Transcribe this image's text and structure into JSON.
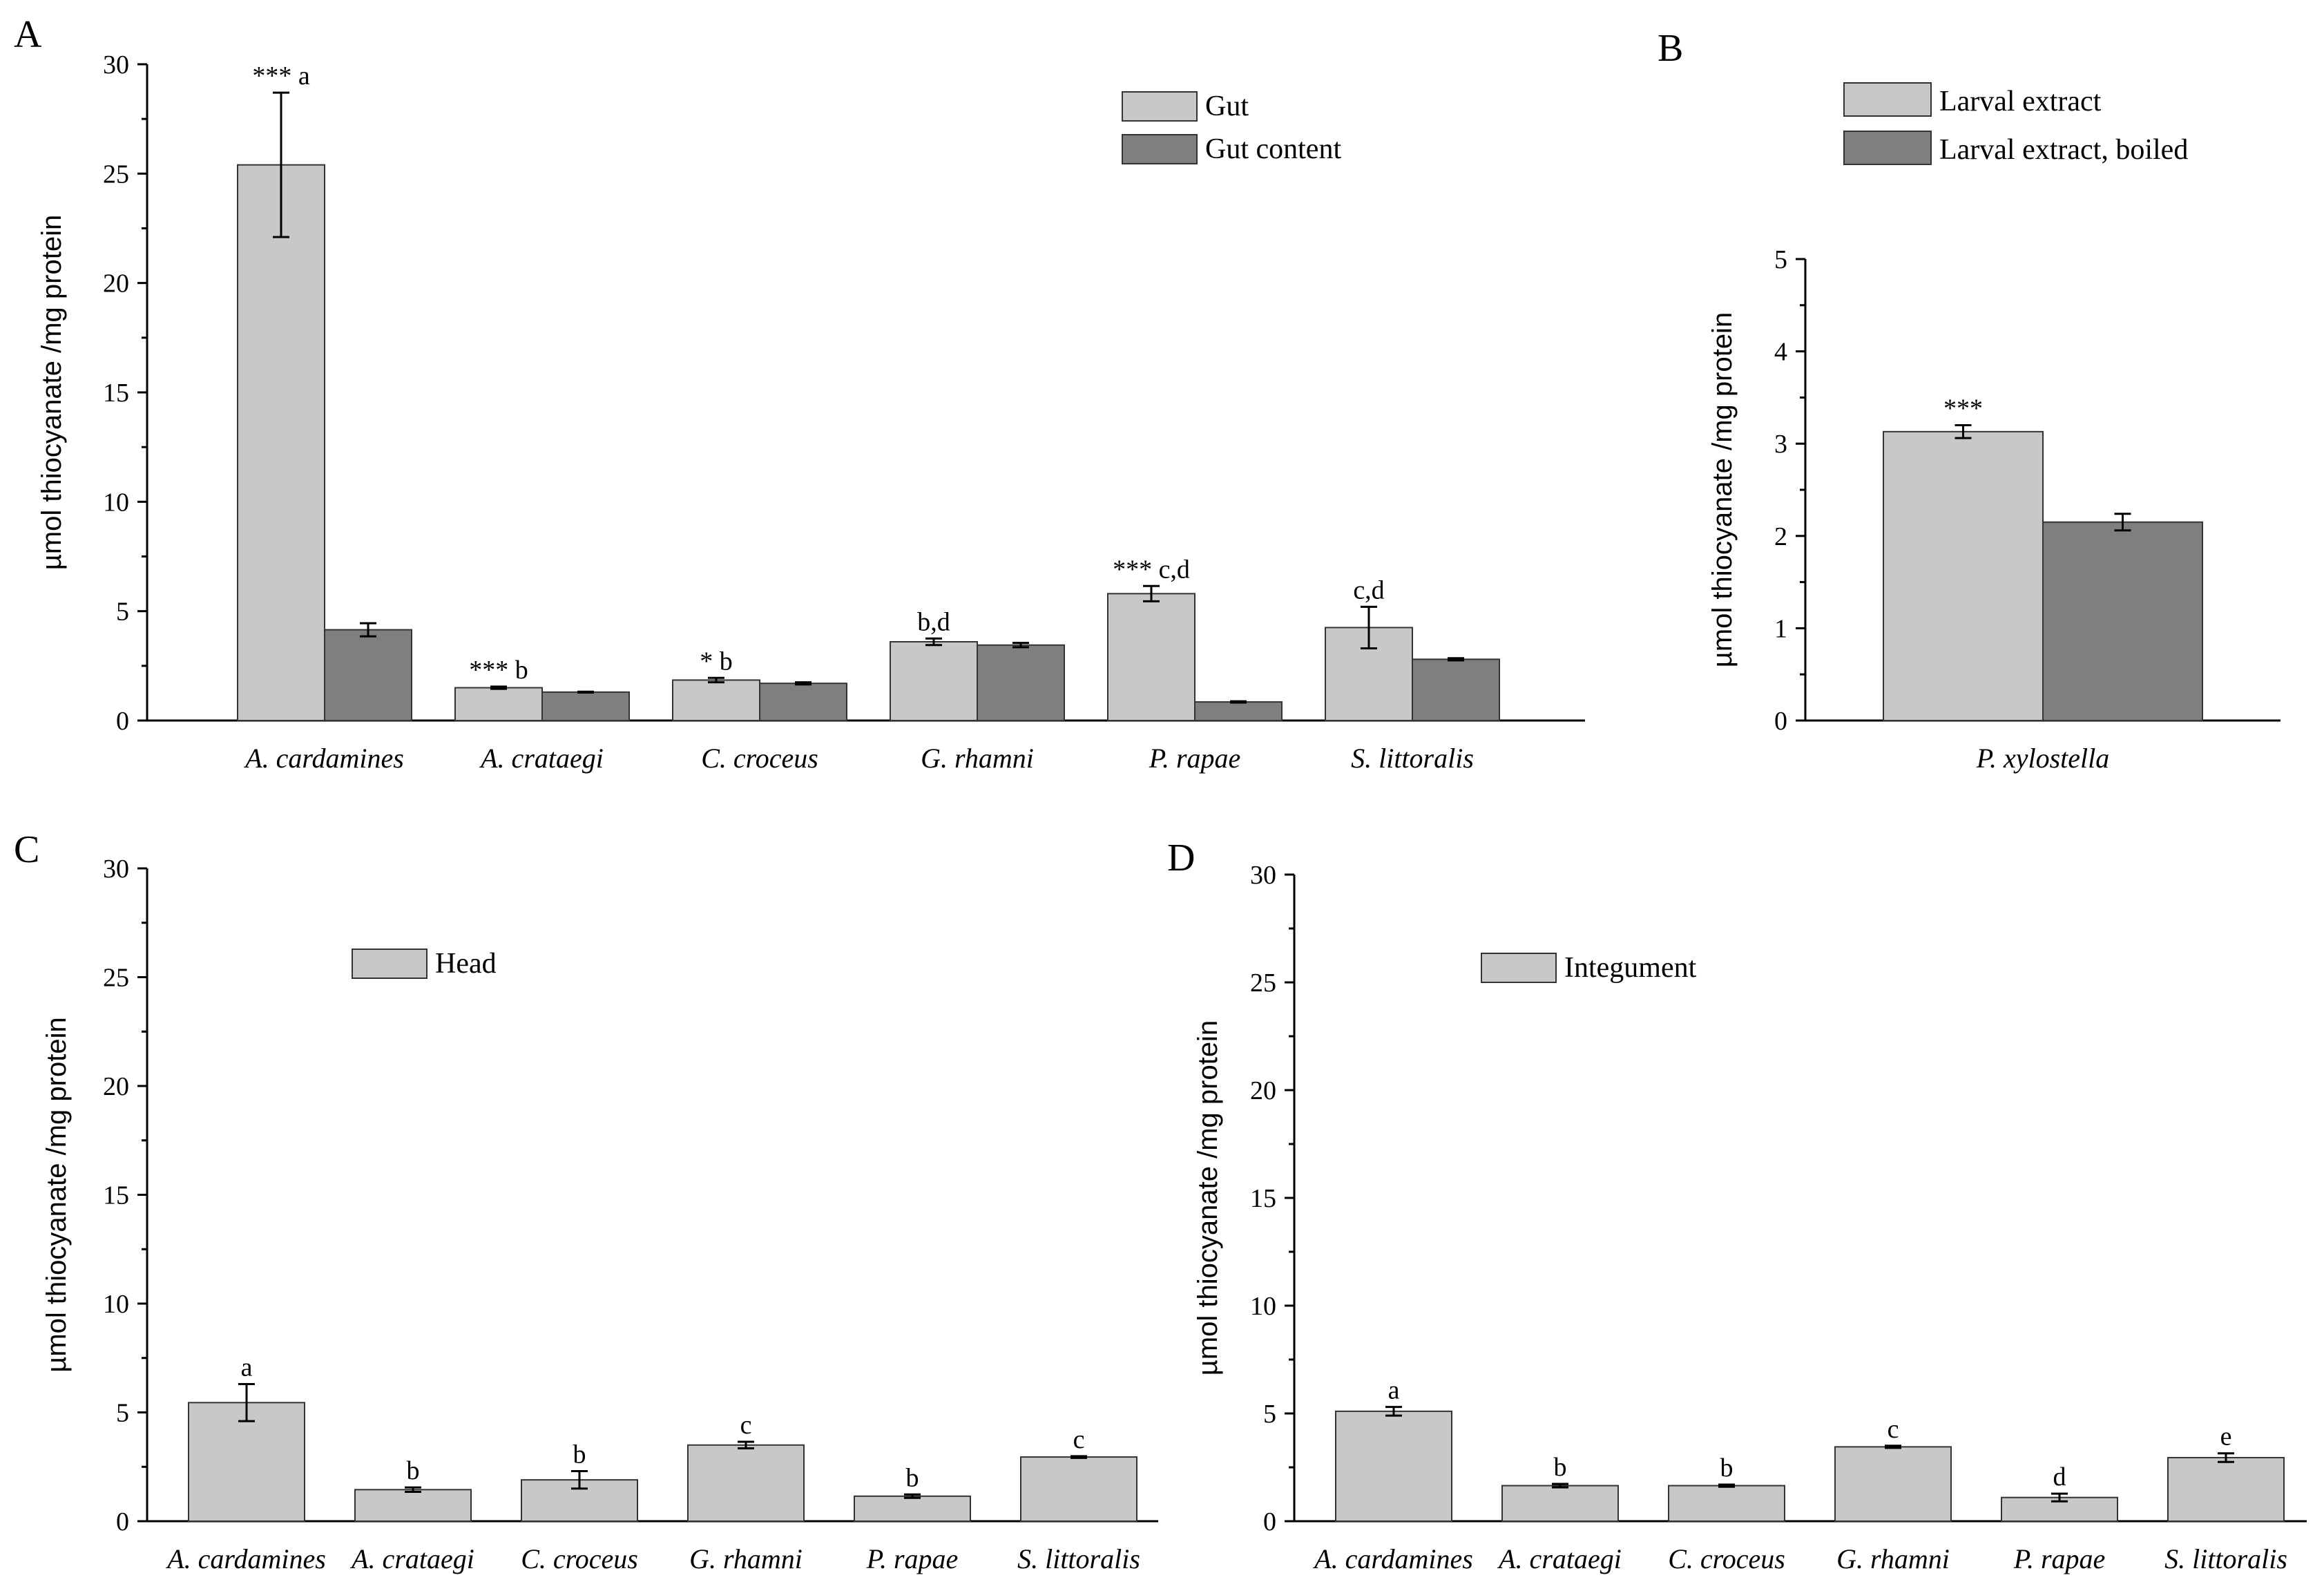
{
  "chart_data": [
    {
      "panel": "A",
      "type": "bar",
      "title": "",
      "xlabel": "",
      "ylabel": "µmol thiocyanate /mg protein",
      "ylim": [
        0,
        30
      ],
      "yticks": [
        0,
        5,
        10,
        15,
        20,
        25,
        30
      ],
      "categories": [
        "A. cardamines",
        "A. crataegi",
        "C. croceus",
        "G. rhamni",
        "P. rapae",
        "S. littoralis"
      ],
      "series": [
        {
          "name": "Gut",
          "color": "#c8c8c8",
          "values": [
            25.4,
            1.5,
            1.85,
            3.6,
            5.8,
            4.25
          ],
          "errors": [
            3.3,
            0.05,
            0.1,
            0.15,
            0.35,
            0.95
          ]
        },
        {
          "name": "Gut content",
          "color": "#7f7f7f",
          "values": [
            4.15,
            1.3,
            1.7,
            3.45,
            0.85,
            2.8
          ],
          "errors": [
            0.3,
            0.02,
            0.05,
            0.1,
            0.03,
            0.05
          ]
        }
      ],
      "annotations": [
        "*** a",
        "*** b",
        "* b",
        "b,d",
        "*** c,d",
        "c,d"
      ]
    },
    {
      "panel": "B",
      "type": "bar",
      "title": "",
      "xlabel": "",
      "ylabel": "µmol thiocyanate /mg protein",
      "ylim": [
        0,
        5
      ],
      "yticks": [
        0,
        1,
        2,
        3,
        4,
        5
      ],
      "categories": [
        "P. xylostella"
      ],
      "series": [
        {
          "name": "Larval extract",
          "color": "#c8c8c8",
          "values": [
            3.13
          ],
          "errors": [
            0.07
          ]
        },
        {
          "name": "Larval extract, boiled",
          "color": "#7f7f7f",
          "values": [
            2.15
          ],
          "errors": [
            0.09
          ]
        }
      ],
      "annotations": [
        "***"
      ]
    },
    {
      "panel": "C",
      "type": "bar",
      "title": "",
      "xlabel": "",
      "ylabel": "µmol thiocyanate /mg protein",
      "ylim": [
        0,
        30
      ],
      "yticks": [
        0,
        5,
        10,
        15,
        20,
        25,
        30
      ],
      "categories": [
        "A. cardamines",
        "A. crataegi",
        "C. croceus",
        "G. rhamni",
        "P. rapae",
        "S. littoralis"
      ],
      "series": [
        {
          "name": "Head",
          "color": "#c8c8c8",
          "values": [
            5.45,
            1.45,
            1.9,
            3.5,
            1.15,
            2.95
          ],
          "errors": [
            0.85,
            0.1,
            0.4,
            0.15,
            0.08,
            0.04
          ]
        }
      ],
      "annotations": [
        "a",
        "b",
        "b",
        "c",
        "b",
        "c"
      ]
    },
    {
      "panel": "D",
      "type": "bar",
      "title": "",
      "xlabel": "",
      "ylabel": "µmol thiocyanate /mg protein",
      "ylim": [
        0,
        30
      ],
      "yticks": [
        0,
        5,
        10,
        15,
        20,
        25,
        30
      ],
      "categories": [
        "A. cardamines",
        "A. crataegi",
        "C. croceus",
        "G. rhamni",
        "P. rapae",
        "S. littoralis"
      ],
      "series": [
        {
          "name": "Integument",
          "color": "#c8c8c8",
          "values": [
            5.1,
            1.65,
            1.65,
            3.45,
            1.1,
            2.95
          ],
          "errors": [
            0.2,
            0.08,
            0.05,
            0.05,
            0.18,
            0.2
          ]
        }
      ],
      "annotations": [
        "a",
        "b",
        "b",
        "c",
        "d",
        "e"
      ]
    }
  ]
}
